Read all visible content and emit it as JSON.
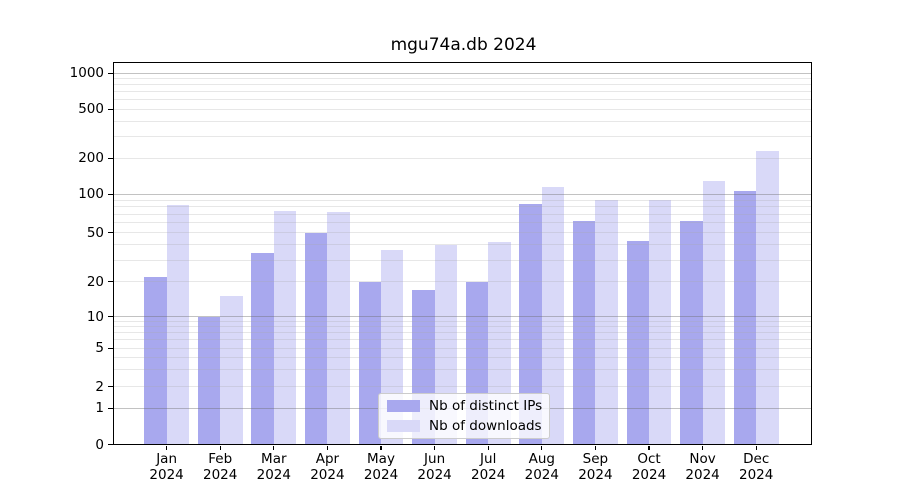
{
  "title": "mgu74a.db 2024",
  "chart_data": {
    "type": "bar",
    "title": "mgu74a.db 2024",
    "year_label": "2024",
    "categories": [
      "Jan",
      "Feb",
      "Mar",
      "Apr",
      "May",
      "Jun",
      "Jul",
      "Aug",
      "Sep",
      "Oct",
      "Nov",
      "Dec"
    ],
    "series": [
      {
        "name": "Nb of distinct IPs",
        "color": "#a8a8ee",
        "values": [
          22,
          10,
          34,
          50,
          20,
          17,
          20,
          84,
          62,
          43,
          62,
          107
        ]
      },
      {
        "name": "Nb of downloads",
        "color": "#d9d9f8",
        "values": [
          82,
          15,
          74,
          73,
          36,
          40,
          42,
          114,
          90,
          90,
          130,
          230
        ]
      }
    ],
    "y_axis": {
      "scale": "log (0 shown at baseline)",
      "tick_labels": [
        "1000",
        "500",
        "200",
        "100",
        "50",
        "20",
        "10",
        "5",
        "2",
        "1",
        "0"
      ],
      "ylim": [
        0,
        1216
      ]
    },
    "grid": true,
    "legend_position": "bottom-center"
  }
}
